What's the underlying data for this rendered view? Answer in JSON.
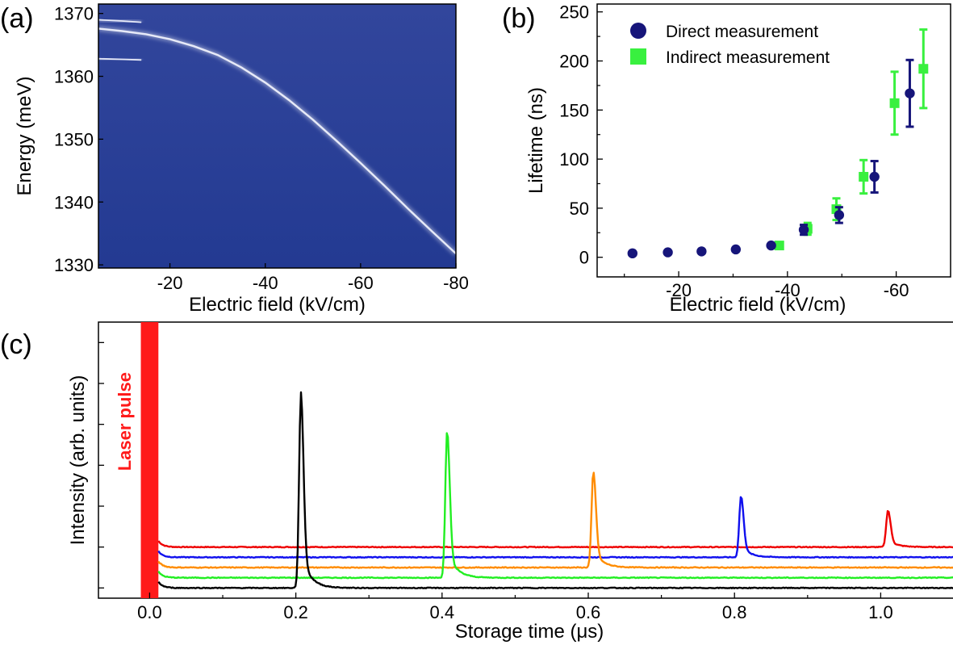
{
  "panels": {
    "a": {
      "letter": "(a)"
    },
    "b": {
      "letter": "(b)"
    },
    "c": {
      "letter": "(c)"
    }
  },
  "chart_data": [
    {
      "panel": "(a)",
      "type": "heatmap",
      "xlabel": "Electric field (kV/cm)",
      "ylabel": "Energy (meV)",
      "xlim": [
        -5,
        -80
      ],
      "ylim": [
        1329.5,
        1371.5
      ],
      "xticks": [
        -20,
        -40,
        -60,
        -80
      ],
      "yticks": [
        1330,
        1340,
        1350,
        1360,
        1370
      ],
      "colormap": {
        "low": "#283e96",
        "high": "#ffffff"
      },
      "lines": [
        {
          "name": "",
          "x": [
            -5,
            -10,
            -15,
            -20,
            -25,
            -30,
            -35,
            -40,
            -45,
            -50,
            -55,
            -60,
            -65,
            -70,
            -75,
            -80
          ],
          "y": [
            1367.6,
            1367.2,
            1366.7,
            1365.9,
            1364.8,
            1363.4,
            1361.4,
            1359.0,
            1356.2,
            1353.1,
            1349.7,
            1346.2,
            1342.6,
            1338.9,
            1335.3,
            1331.8
          ]
        },
        {
          "name": "",
          "x": [
            -5,
            -10,
            -14
          ],
          "y": [
            1369.0,
            1368.8,
            1368.6
          ]
        },
        {
          "name": "",
          "x": [
            -5,
            -10,
            -14
          ],
          "y": [
            1362.8,
            1362.7,
            1362.6
          ]
        }
      ]
    },
    {
      "panel": "(b)",
      "type": "scatter",
      "xlabel": "Electric field (kV/cm)",
      "ylabel": "Lifetime (ns)",
      "xlim": [
        -5,
        -70
      ],
      "ylim": [
        -20,
        258
      ],
      "xticks": [
        -20,
        -40,
        -60
      ],
      "yticks": [
        0,
        50,
        100,
        150,
        200,
        250
      ],
      "grid": false,
      "legend": "top-left",
      "series": [
        {
          "name": "Direct measurement",
          "color": "#16157a",
          "marker": "circle",
          "x": [
            -11.5,
            -18,
            -24.2,
            -30.5,
            -37,
            -43,
            -49.5,
            -56,
            -62.5
          ],
          "y": [
            4,
            5,
            6,
            8,
            12,
            28,
            43,
            82,
            167
          ],
          "yerr": [
            0,
            0,
            0,
            0,
            0,
            5,
            8,
            16,
            34
          ]
        },
        {
          "name": "Indirect measurement",
          "color": "#39f03f",
          "marker": "square",
          "x": [
            -38.5,
            -43.7,
            -49,
            -54,
            -59.7,
            -65
          ],
          "y": [
            12,
            29,
            49,
            82,
            157,
            192
          ],
          "yerr": [
            0,
            6,
            11,
            17,
            32,
            40
          ]
        }
      ]
    },
    {
      "panel": "(c)",
      "type": "line",
      "xlabel": "Storage time (μs)",
      "ylabel": "Intensity (arb. units)",
      "xlim": [
        -0.07,
        1.1
      ],
      "ylim": [
        -0.05,
        1.3
      ],
      "xticks": [
        0.0,
        0.2,
        0.4,
        0.6,
        0.8,
        1.0
      ],
      "xticklabels": [
        "0.0",
        "0.2",
        "0.4",
        "0.6",
        "0.8",
        "1.0"
      ],
      "yticks": [
        0,
        0.2,
        0.4,
        0.6,
        0.8,
        1.0,
        1.2
      ],
      "yticklabels": [],
      "annotation": {
        "text": "Laser pulse",
        "color": "#ff1a1a",
        "x": [
          -0.012,
          0.012
        ]
      },
      "series": [
        {
          "name": "",
          "color": "#000000",
          "baseline": 0.0,
          "peak_time": 0.207,
          "peak_height": 0.955
        },
        {
          "name": "",
          "color": "#22ee22",
          "baseline": 0.05,
          "peak_time": 0.407,
          "peak_height": 0.72
        },
        {
          "name": "",
          "color": "#ff8c00",
          "baseline": 0.1,
          "peak_time": 0.607,
          "peak_height": 0.47
        },
        {
          "name": "",
          "color": "#1010ee",
          "baseline": 0.15,
          "peak_time": 0.809,
          "peak_height": 0.3
        },
        {
          "name": "",
          "color": "#ee0000",
          "baseline": 0.2,
          "peak_time": 1.01,
          "peak_height": 0.18
        }
      ]
    }
  ]
}
